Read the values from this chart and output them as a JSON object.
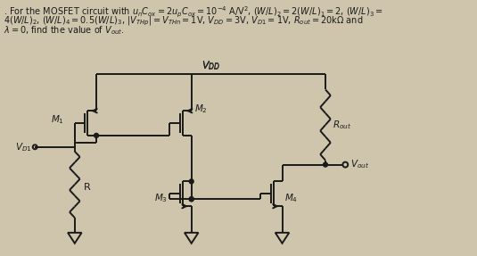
{
  "bg_color": "#cfc5ac",
  "text_color": "#1a1a1a",
  "line_color": "#1a1a1a",
  "header1": ". For the MOSFET circuit with $u_nC_{ox} = 2u_pC_{ox} = 10^{-4}$ A/V$^2$, $(W/L)_2 = 2(W/L)_1 = 2$, $(W/L)_3 =$",
  "header2": "$4(W/L)_2$, $(W/L)_4 = 0.5(W/L)_3$, $|V_{THp}| = V_{THn} = 1$V, $V_{DD} = 3$V, $V_{D1} = 1$V, $R_{out} = 20$k$\\Omega$ and",
  "header3": "$\\lambda = 0$, find the value of $V_{out}$."
}
